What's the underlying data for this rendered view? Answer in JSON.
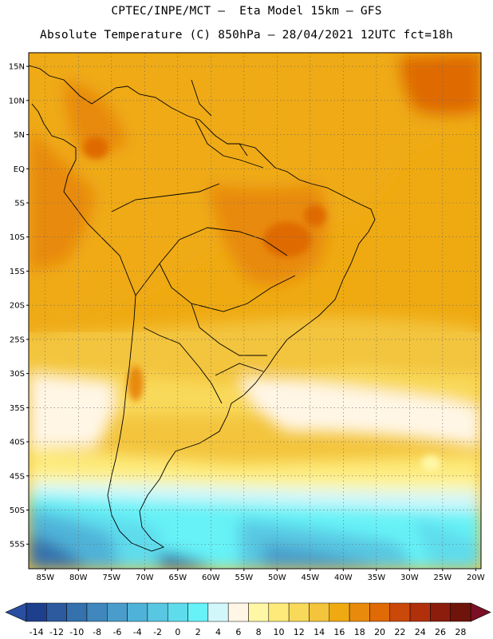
{
  "header": {
    "line1": "CPTEC/INPE/MCT –  Eta Model 15km – GFS",
    "line2": "Absolute Temperature (C) 850hPa – 28/04/2021 12UTC fct=18h"
  },
  "map": {
    "lat_labels": [
      "15N",
      "10N",
      "5N",
      "EQ",
      "5S",
      "10S",
      "15S",
      "20S",
      "25S",
      "30S",
      "35S",
      "40S",
      "45S",
      "50S",
      "55S"
    ],
    "lon_labels": [
      "85W",
      "80W",
      "75W",
      "70W",
      "65W",
      "60W",
      "55W",
      "50W",
      "45W",
      "40W",
      "35W",
      "30W",
      "25W",
      "20W"
    ],
    "lat_values": [
      15,
      10,
      5,
      0,
      -5,
      -10,
      -15,
      -20,
      -25,
      -30,
      -35,
      -40,
      -45,
      -50,
      -55
    ],
    "lon_values": [
      -85,
      -80,
      -75,
      -70,
      -65,
      -60,
      -55,
      -50,
      -45,
      -40,
      -35,
      -30,
      -25,
      -20
    ],
    "grid": true
  },
  "colorbar": {
    "labels": [
      "-14",
      "-12",
      "-10",
      "-8",
      "-6",
      "-4",
      "-2",
      "0",
      "2",
      "4",
      "6",
      "8",
      "10",
      "12",
      "14",
      "16",
      "18",
      "20",
      "22",
      "24",
      "26",
      "28"
    ],
    "colors": [
      "#1e3f8c",
      "#2d5a9e",
      "#3471ad",
      "#3f87bd",
      "#4a9dcb",
      "#4fb2d8",
      "#58c7e2",
      "#5fdcec",
      "#66f2f7",
      "#d2f7fb",
      "#fff6e6",
      "#fff7a6",
      "#fdea7a",
      "#f9d95a",
      "#f3c43c",
      "#efaa12",
      "#e88a0c",
      "#df6a06",
      "#c9480a",
      "#b0300c",
      "#8c1d0c",
      "#6e140a"
    ],
    "min_color": "#2a4fa0",
    "max_color": "#7a0f26"
  }
}
